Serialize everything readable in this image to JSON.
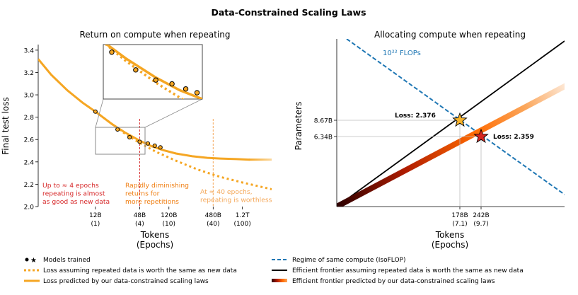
{
  "figure_title": "Data-Constrained Scaling Laws",
  "colors": {
    "orange": "#f5a623",
    "black": "#000000",
    "blue": "#1f77b4",
    "red_annot": "#d62728",
    "mid_annot": "#ef7d10",
    "light_annot": "#f4a85a",
    "grid": "#bbbbbb",
    "star_gold": "#f7b32b",
    "star_red": "#d7261e"
  },
  "chart_data": [
    {
      "type": "line",
      "title": "Return on compute when repeating",
      "xlabel": "Tokens",
      "xlabel2": "(Epochs)",
      "ylabel": "Final test loss",
      "x_scale": "log",
      "xlim": [
        2000000000.0,
        3000000000000.0
      ],
      "ylim": [
        2.0,
        3.45
      ],
      "yticks": [
        "2.0",
        "2.2",
        "2.4",
        "2.6",
        "2.8",
        "3.0",
        "3.2",
        "3.4"
      ],
      "xticks": [
        {
          "value": 12000000000.0,
          "label": "12B",
          "sub": "(1)"
        },
        {
          "value": 48000000000.0,
          "label": "48B",
          "sub": "(4)"
        },
        {
          "value": 120000000000.0,
          "label": "120B",
          "sub": "(10)"
        },
        {
          "value": 480000000000.0,
          "label": "480B",
          "sub": "(40)"
        },
        {
          "value": 1200000000000.0,
          "label": "1.2T",
          "sub": "(100)"
        }
      ],
      "series": [
        {
          "name": "Loss predicted by our data-constrained scaling laws",
          "style": "solid",
          "x": [
            2000000000.0,
            3000000000.0,
            5000000000.0,
            8000000000.0,
            12000000000.0,
            20000000000.0,
            30000000000.0,
            48000000000.0,
            70000000000.0,
            100000000000.0,
            150000000000.0,
            250000000000.0,
            400000000000.0,
            600000000000.0,
            1000000000000.0,
            1500000000000.0
          ],
          "y": [
            3.32,
            3.18,
            3.04,
            2.93,
            2.85,
            2.74,
            2.665,
            2.59,
            2.54,
            2.505,
            2.475,
            2.45,
            2.436,
            2.43,
            2.425,
            2.42
          ]
        },
        {
          "name": "Loss assuming repeated data is worth the same as new data",
          "style": "dotted",
          "x": [
            12000000000.0,
            20000000000.0,
            30000000000.0,
            48000000000.0,
            80000000000.0,
            150000000000.0,
            300000000000.0,
            600000000000.0,
            1200000000000.0,
            3000000000000.0
          ],
          "y": [
            2.85,
            2.74,
            2.655,
            2.57,
            2.49,
            2.41,
            2.33,
            2.265,
            2.215,
            2.155
          ]
        }
      ],
      "models": {
        "x": [
          12000000000.0,
          24000000000.0,
          35000000000.0,
          48000000000.0,
          62000000000.0,
          77000000000.0,
          92000000000.0
        ],
        "y": [
          2.85,
          2.69,
          2.62,
          2.58,
          2.565,
          2.545,
          2.53
        ]
      },
      "vlines": [
        {
          "x": 48000000000.0,
          "color": "#d62728"
        },
        {
          "x": 480000000000.0,
          "color": "#f4a85a"
        }
      ],
      "annotations": [
        {
          "text": [
            "Up to ≈ 4 epochs",
            "repeating is almost",
            "as good as new data"
          ],
          "color": "#d62728"
        },
        {
          "text": [
            "Rapidly diminishing",
            "returns for",
            "more repetitions"
          ],
          "color": "#ef7d10"
        },
        {
          "text": [
            "At ≈ 40 epochs,",
            "repeating is worthless"
          ],
          "color": "#f4a85a"
        }
      ]
    },
    {
      "type": "line",
      "title": "Allocating compute when repeating",
      "xlabel": "Tokens",
      "xlabel2": "(Epochs)",
      "ylabel": "Parameters",
      "x_scale": "log",
      "y_scale": "log",
      "xticks": [
        {
          "value": 178000000000.0,
          "label": "178B",
          "sub": "(7.1)"
        },
        {
          "value": 242000000000.0,
          "label": "242B",
          "sub": "(9.7)"
        }
      ],
      "yticks": [
        {
          "value": 8670000000.0,
          "label": "8.67B"
        },
        {
          "value": 6340000000.0,
          "label": "6.34B"
        }
      ],
      "isoflop_label": "10²² FLOPs",
      "points": [
        {
          "name": "Efficient frontier assuming repeated data is worth the same as new data",
          "tokens": 178000000000.0,
          "params": 8670000000.0,
          "loss_label": "Loss: 2.376"
        },
        {
          "name": "Efficient frontier predicted by our data-constrained scaling laws",
          "tokens": 242000000000.0,
          "params": 6340000000.0,
          "loss_label": "Loss: 2.359"
        }
      ]
    }
  ],
  "legend": {
    "left": [
      {
        "key": "models",
        "label": "Models trained"
      },
      {
        "key": "dotted",
        "label": "Loss assuming repeated data is worth the same as new data"
      },
      {
        "key": "solid",
        "label": "Loss predicted by our data-constrained scaling laws"
      }
    ],
    "right": [
      {
        "key": "isoflop",
        "label": "Regime of same compute (IsoFLOP)"
      },
      {
        "key": "black",
        "label": "Efficient frontier assuming repeated data is worth the same as new data"
      },
      {
        "key": "gradient",
        "label": "Efficient frontier predicted by our data-constrained scaling laws"
      }
    ]
  }
}
